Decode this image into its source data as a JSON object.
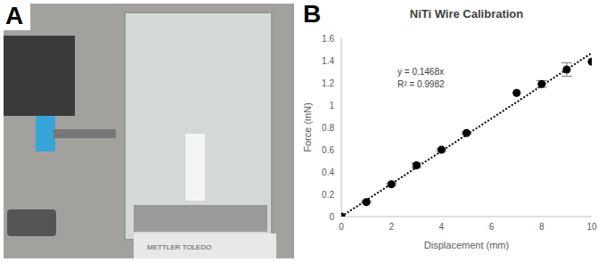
{
  "panels": {
    "A": {
      "label": "A",
      "image_text": "METTLER TOLEDO"
    },
    "B": {
      "label": "B"
    }
  },
  "chart_data": {
    "type": "scatter",
    "title": "NiTi Wire Calibration",
    "x_label": "Displacement (mm)",
    "y_label": "Force (mN)",
    "x": [
      0,
      1,
      2,
      3,
      4,
      5,
      7,
      8,
      9,
      10
    ],
    "values": [
      0,
      0.13,
      0.29,
      0.46,
      0.6,
      0.75,
      1.11,
      1.19,
      1.32,
      1.39
    ],
    "errors": [
      0,
      0.01,
      0.01,
      0.02,
      0.01,
      0.01,
      0,
      0.03,
      0.06,
      0
    ],
    "color": "#000000",
    "marker": "circle",
    "xlim": [
      0,
      10
    ],
    "xticks": [
      0,
      2,
      4,
      6,
      8,
      10
    ],
    "ylim": [
      0,
      1.6
    ],
    "yticks": [
      0,
      0.2,
      0.4,
      0.6,
      0.8,
      1,
      1.2,
      1.4,
      1.6
    ],
    "grid": false,
    "trendline": {
      "slope": 0.1468,
      "line_style": "dotted",
      "label": "y = 0.1468x",
      "r2_label": "R² = 0.9982"
    }
  }
}
